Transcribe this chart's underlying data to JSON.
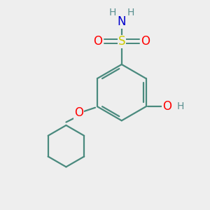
{
  "bg_color": "#eeeeee",
  "atom_colors": {
    "C": "#4a8a7e",
    "S": "#cccc00",
    "O": "#ff0000",
    "N": "#0000cc",
    "H": "#5a9090"
  },
  "bond_color": "#4a8a7e",
  "bond_width": 1.6,
  "figsize": [
    3.0,
    3.0
  ],
  "dpi": 100,
  "xlim": [
    0,
    10
  ],
  "ylim": [
    0,
    10
  ]
}
